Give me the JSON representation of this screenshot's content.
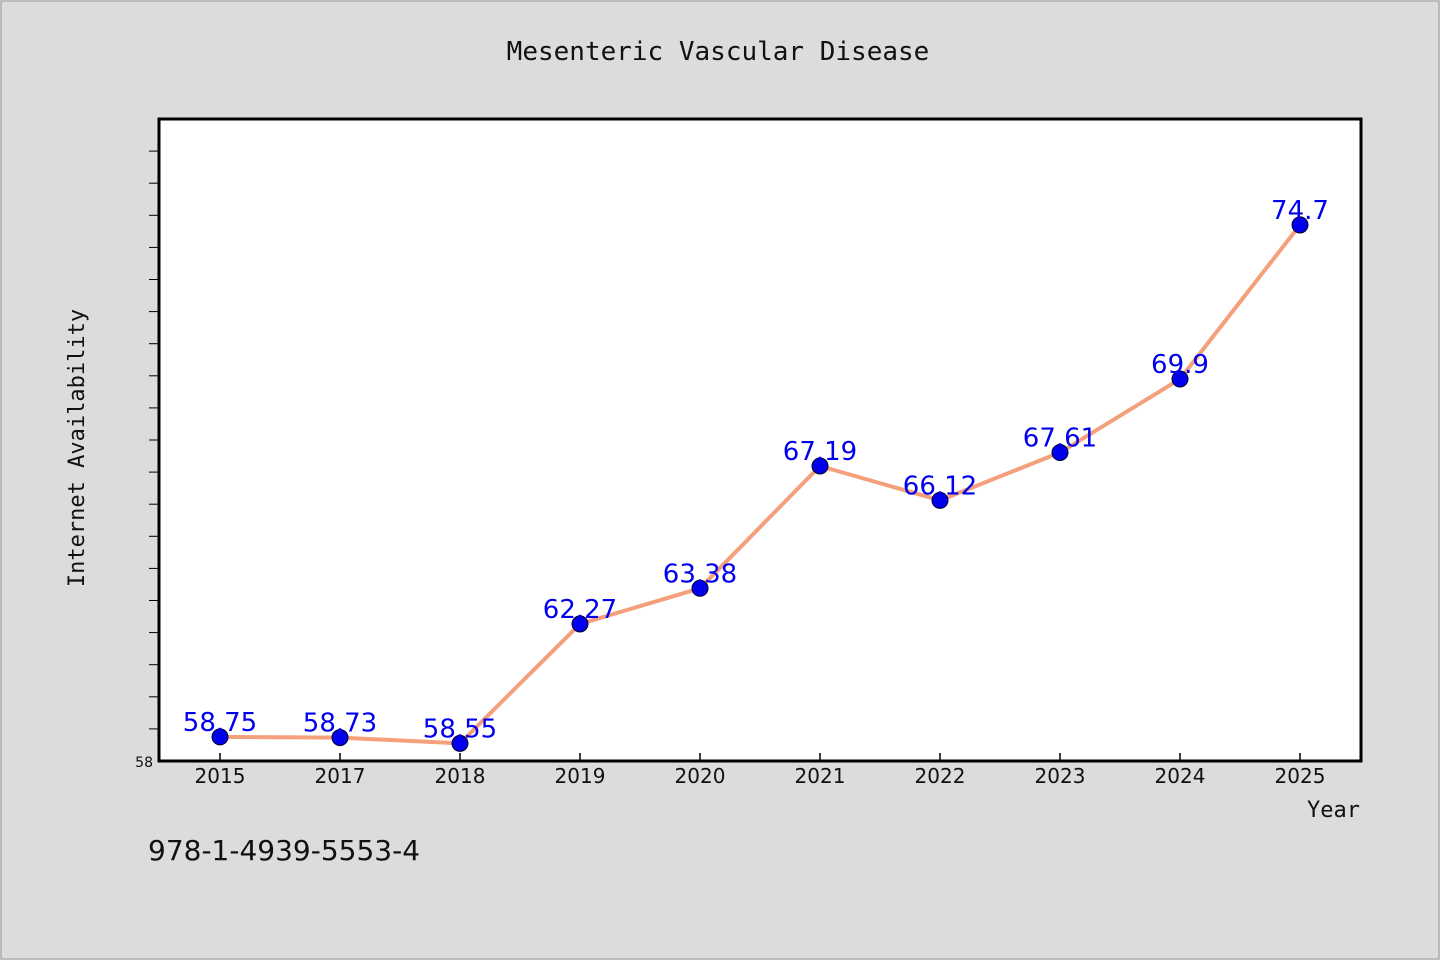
{
  "chart_data": {
    "type": "line",
    "title": "Mesenteric Vascular Disease",
    "xlabel": "Year",
    "ylabel": "Internet Availability",
    "categories": [
      "2015",
      "2017",
      "2018",
      "2019",
      "2020",
      "2021",
      "2022",
      "2023",
      "2024",
      "2025"
    ],
    "values": [
      58.75,
      58.73,
      58.55,
      62.27,
      63.38,
      67.19,
      66.12,
      67.61,
      69.9,
      74.7
    ],
    "data_labels": [
      "58.75",
      "58.73",
      "58.55",
      "62.27",
      "63.38",
      "67.19",
      "66.12",
      "67.61",
      "69.9",
      "74.7"
    ],
    "ylim": [
      58,
      78
    ],
    "y_tick_labels": [
      "58"
    ],
    "grid": false,
    "legend": "none",
    "colors": {
      "line": "#f4a07c",
      "marker": "#0000ee",
      "label": "#0000ee",
      "plot_bg": "#ffffff",
      "page_bg": "#dcdcdc"
    }
  },
  "footer_text": "978-1-4939-5553-4"
}
